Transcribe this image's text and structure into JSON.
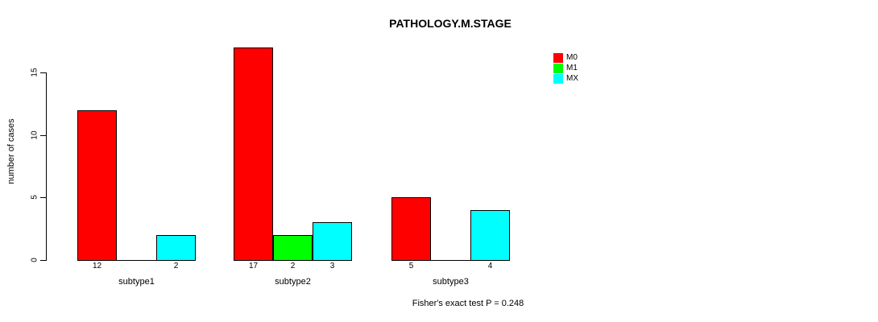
{
  "chart_data": {
    "type": "bar",
    "title": "PATHOLOGY.M.STAGE",
    "ylabel": "number of cases",
    "xlabel": "",
    "categories": [
      "subtype1",
      "subtype2",
      "subtype3"
    ],
    "series": [
      {
        "name": "M0",
        "color": "#ff0000",
        "values": [
          12,
          17,
          5
        ]
      },
      {
        "name": "M1",
        "color": "#00ff00",
        "values": [
          0,
          2,
          0
        ]
      },
      {
        "name": "MX",
        "color": "#00ffff",
        "values": [
          2,
          3,
          4
        ]
      }
    ],
    "y_ticks": [
      0,
      5,
      10,
      15
    ],
    "ylim": [
      0,
      17
    ],
    "bar_value_labels": true,
    "zero_bars_drawn_flat": true,
    "legend_position": "top-right",
    "grid": false,
    "annotation": "Fisher's exact test P = 0.248",
    "axis_color": "#000000",
    "background_color": "#ffffff"
  }
}
